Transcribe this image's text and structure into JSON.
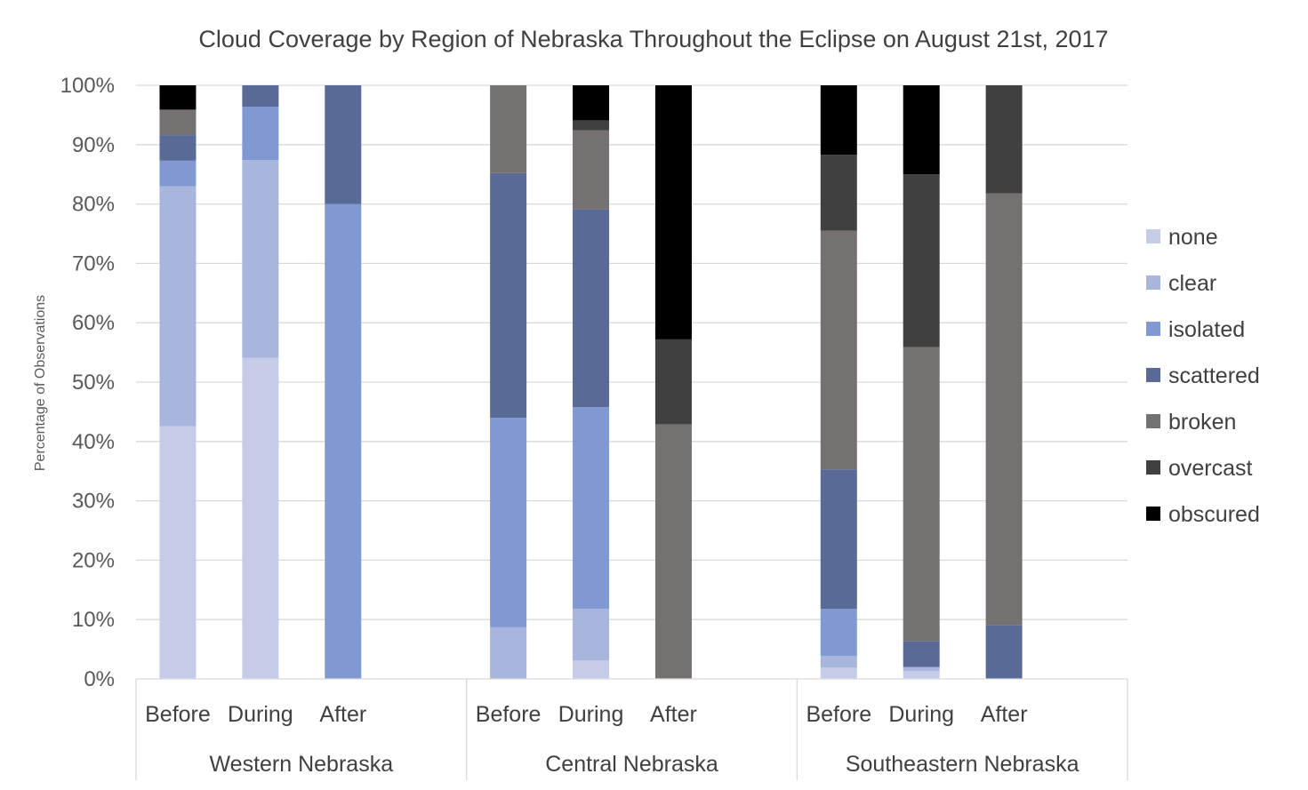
{
  "chart_data": {
    "type": "bar",
    "stacked": true,
    "percent": true,
    "title": "Cloud Coverage by Region of Nebraska Throughout the Eclipse on August 21st, 2017",
    "xlabel": "",
    "ylabel": "Percentage of Observations",
    "ylim": [
      0,
      100
    ],
    "yticks": [
      "0%",
      "10%",
      "20%",
      "30%",
      "40%",
      "50%",
      "60%",
      "70%",
      "80%",
      "90%",
      "100%"
    ],
    "grid": true,
    "legend_position": "right",
    "groups": [
      {
        "name": "Western Nebraska",
        "categories": [
          "Before",
          "During",
          "After"
        ]
      },
      {
        "name": "Central Nebraska",
        "categories": [
          "Before",
          "During",
          "After"
        ]
      },
      {
        "name": "Southeastern Nebraska",
        "categories": [
          "Before",
          "During",
          "After"
        ]
      }
    ],
    "categories": [
      "Before",
      "During",
      "After",
      "Before",
      "During",
      "After",
      "Before",
      "During",
      "After"
    ],
    "series": [
      {
        "name": "none",
        "color": "#c5cce7",
        "values": [
          42.6,
          54.1,
          0,
          0,
          3.1,
          0,
          1.9,
          1.3,
          0
        ]
      },
      {
        "name": "clear",
        "color": "#a8b5dc",
        "values": [
          40.4,
          33.3,
          0,
          8.7,
          8.7,
          0,
          2.0,
          0.7,
          0
        ]
      },
      {
        "name": "isolated",
        "color": "#8099d2",
        "values": [
          4.3,
          9.0,
          80.0,
          35.3,
          34.0,
          0,
          7.9,
          0,
          0
        ]
      },
      {
        "name": "scattered",
        "color": "#5a6a96",
        "values": [
          4.3,
          3.6,
          20.0,
          41.2,
          33.3,
          0,
          23.5,
          4.4,
          9.1
        ]
      },
      {
        "name": "broken",
        "color": "#767171",
        "values": [
          4.3,
          0,
          0,
          14.8,
          13.3,
          42.9,
          40.2,
          49.5,
          72.7
        ]
      },
      {
        "name": "overcast",
        "color": "#404040",
        "values": [
          0,
          0,
          0,
          0,
          1.7,
          14.3,
          12.8,
          29.1,
          18.2
        ]
      },
      {
        "name": "obscured",
        "color": "#000000",
        "values": [
          4.1,
          0,
          0,
          0,
          5.9,
          42.8,
          11.7,
          15.0,
          0
        ]
      }
    ]
  }
}
